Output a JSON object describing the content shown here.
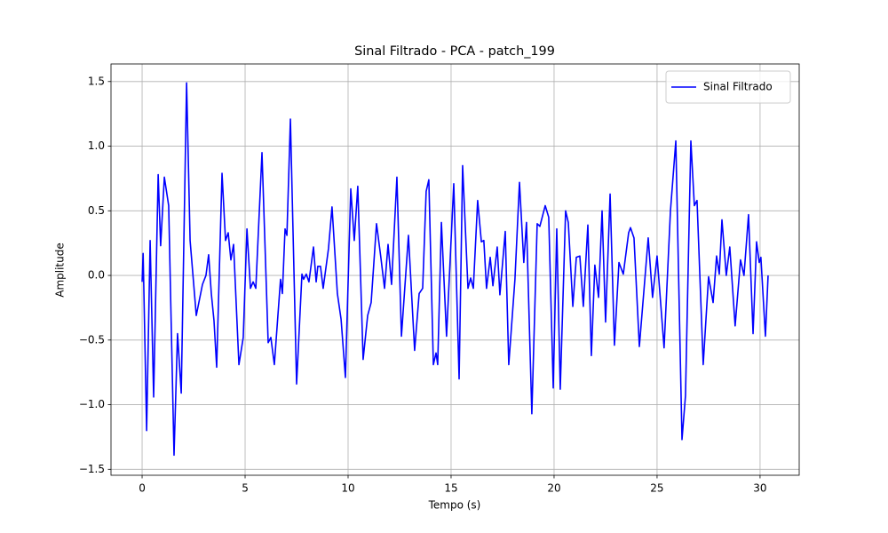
{
  "chart_data": {
    "type": "line",
    "title": "Sinal Filtrado - PCA - patch_199",
    "xlabel": "Tempo (s)",
    "ylabel": "Amplitude",
    "xlim": [
      -1.51,
      31.9
    ],
    "ylim": [
      -1.546,
      1.636
    ],
    "xticks": [
      0,
      5,
      10,
      15,
      20,
      25,
      30
    ],
    "yticks": [
      {
        "value": -1.5,
        "label": "−1.5"
      },
      {
        "value": -1.0,
        "label": "−1.0"
      },
      {
        "value": -0.5,
        "label": "−0.5"
      },
      {
        "value": 0.0,
        "label": "0.0"
      },
      {
        "value": 0.5,
        "label": "0.5"
      },
      {
        "value": 1.0,
        "label": "1.0"
      },
      {
        "value": 1.5,
        "label": "1.5"
      }
    ],
    "grid": true,
    "legend": "upper right",
    "x": [
      0,
      0.05,
      0.22,
      0.39,
      0.56,
      0.78,
      0.9,
      1.08,
      1.29,
      1.55,
      1.72,
      1.9,
      2.16,
      2.33,
      2.63,
      2.93,
      3.1,
      3.23,
      3.36,
      3.49,
      3.62,
      3.88,
      4.05,
      4.18,
      4.31,
      4.44,
      4.7,
      4.91,
      5.09,
      5.26,
      5.39,
      5.52,
      5.82,
      6.12,
      6.25,
      6.42,
      6.72,
      6.81,
      6.94,
      7.03,
      7.2,
      7.5,
      7.76,
      7.84,
      7.97,
      8.1,
      8.32,
      8.45,
      8.53,
      8.66,
      8.79,
      9.05,
      9.22,
      9.48,
      9.66,
      9.87,
      10.13,
      10.3,
      10.47,
      10.73,
      10.95,
      11.12,
      11.38,
      11.59,
      11.77,
      11.94,
      12.11,
      12.37,
      12.59,
      12.93,
      13.23,
      13.45,
      13.62,
      13.79,
      13.92,
      14.14,
      14.27,
      14.35,
      14.53,
      14.78,
      15.13,
      15.39,
      15.56,
      15.82,
      15.95,
      16.08,
      16.29,
      16.47,
      16.59,
      16.72,
      16.9,
      17.03,
      17.24,
      17.37,
      17.63,
      17.8,
      18.1,
      18.32,
      18.53,
      18.66,
      18.92,
      19.18,
      19.31,
      19.57,
      19.74,
      19.96,
      20.13,
      20.3,
      20.56,
      20.69,
      20.91,
      21.08,
      21.25,
      21.42,
      21.64,
      21.81,
      21.98,
      22.16,
      22.33,
      22.5,
      22.72,
      22.93,
      23.15,
      23.36,
      23.62,
      23.71,
      23.88,
      24.14,
      24.57,
      24.78,
      25.0,
      25.34,
      25.65,
      25.91,
      26.21,
      26.38,
      26.64,
      26.81,
      26.94,
      27.24,
      27.5,
      27.72,
      27.89,
      28.02,
      28.15,
      28.36,
      28.53,
      28.79,
      29.05,
      29.22,
      29.44,
      29.66,
      29.83,
      29.96,
      30.04,
      30.26,
      30.39
    ],
    "series": [
      {
        "name": "Sinal Filtrado",
        "color": "#0000ff",
        "values": [
          -0.05,
          0.17,
          -1.2,
          0.27,
          -0.94,
          0.78,
          0.23,
          0.76,
          0.54,
          -1.39,
          -0.45,
          -0.91,
          1.49,
          0.27,
          -0.31,
          -0.07,
          0.0,
          0.16,
          -0.14,
          -0.35,
          -0.71,
          0.79,
          0.27,
          0.33,
          0.12,
          0.24,
          -0.69,
          -0.48,
          0.36,
          -0.1,
          -0.05,
          -0.1,
          0.95,
          -0.52,
          -0.48,
          -0.69,
          -0.03,
          -0.14,
          0.36,
          0.31,
          1.21,
          -0.84,
          0.01,
          -0.03,
          0.01,
          -0.05,
          0.22,
          -0.05,
          0.07,
          0.07,
          -0.1,
          0.21,
          0.53,
          -0.14,
          -0.34,
          -0.79,
          0.67,
          0.27,
          0.69,
          -0.65,
          -0.31,
          -0.21,
          0.4,
          0.14,
          -0.1,
          0.24,
          -0.07,
          0.76,
          -0.47,
          0.31,
          -0.58,
          -0.14,
          -0.1,
          0.65,
          0.74,
          -0.69,
          -0.6,
          -0.69,
          0.41,
          -0.47,
          0.71,
          -0.8,
          0.85,
          -0.1,
          -0.02,
          -0.1,
          0.58,
          0.26,
          0.27,
          -0.1,
          0.14,
          -0.08,
          0.22,
          -0.15,
          0.34,
          -0.69,
          -0.03,
          0.72,
          0.1,
          0.41,
          -1.07,
          0.4,
          0.38,
          0.54,
          0.45,
          -0.87,
          0.36,
          -0.88,
          0.5,
          0.41,
          -0.24,
          0.14,
          0.15,
          -0.24,
          0.39,
          -0.62,
          0.08,
          -0.17,
          0.5,
          -0.36,
          0.63,
          -0.54,
          0.1,
          0.01,
          0.33,
          0.37,
          0.29,
          -0.55,
          0.29,
          -0.17,
          0.15,
          -0.56,
          0.5,
          1.04,
          -1.27,
          -0.93,
          1.04,
          0.54,
          0.58,
          -0.69,
          -0.01,
          -0.21,
          0.15,
          0.01,
          0.43,
          0.0,
          0.22,
          -0.39,
          0.12,
          0.0,
          0.47,
          -0.45,
          0.26,
          0.1,
          0.14,
          -0.47,
          0.0
        ]
      }
    ]
  }
}
